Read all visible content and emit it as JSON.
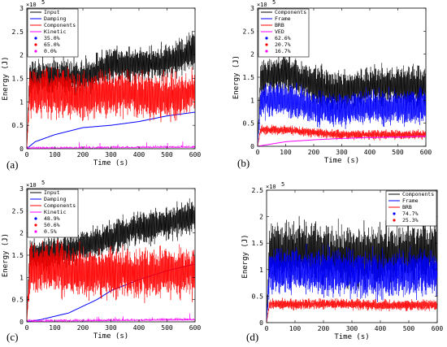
{
  "chart_data": [
    {
      "type": "line",
      "panel_label": "(a)",
      "xlabel": "Time (s)",
      "ylabel": "Energy (J)",
      "y_exponent": "×10",
      "y_exponent_power": "5",
      "xlim": [
        0,
        600
      ],
      "ylim": [
        0,
        3
      ],
      "xticks": [
        "0",
        "100",
        "200",
        "300",
        "400",
        "500",
        "600"
      ],
      "yticks": [
        "0",
        "0.5",
        "1",
        "1.5",
        "2",
        "2.5",
        "3"
      ],
      "series": [
        {
          "name": "Input",
          "color": "#000000",
          "kind": "oscillating",
          "base": [
            [
              0,
              0
            ],
            [
              10,
              1.5
            ],
            [
              100,
              1.55
            ],
            [
              200,
              1.5
            ],
            [
              300,
              1.8
            ],
            [
              400,
              1.8
            ],
            [
              500,
              1.85
            ],
            [
              600,
              2.1
            ]
          ],
          "amp": 0.3
        },
        {
          "name": "Damping",
          "color": "#0000ff",
          "kind": "smooth",
          "points": [
            [
              0,
              0
            ],
            [
              30,
              0.15
            ],
            [
              100,
              0.3
            ],
            [
              200,
              0.45
            ],
            [
              300,
              0.5
            ],
            [
              400,
              0.58
            ],
            [
              500,
              0.7
            ],
            [
              600,
              0.78
            ]
          ]
        },
        {
          "name": "Components",
          "color": "#ff0000",
          "kind": "oscillating",
          "base": [
            [
              0,
              0
            ],
            [
              10,
              1.2
            ],
            [
              100,
              1.2
            ],
            [
              200,
              1.1
            ],
            [
              300,
              1.2
            ],
            [
              400,
              1.15
            ],
            [
              500,
              1.1
            ],
            [
              600,
              1.2
            ]
          ],
          "amp": 0.4
        },
        {
          "name": "Kinetic",
          "color": "#ff00ff",
          "kind": "spiky",
          "base": [
            [
              0,
              0
            ],
            [
              600,
              0.02
            ]
          ],
          "amp": 0.05
        }
      ],
      "legend_series": [
        "Input",
        "Damping",
        "Components",
        "Kinetic"
      ],
      "legend_percent": [
        {
          "label": "35.0%",
          "color": "#0000ff"
        },
        {
          "label": "65.0%",
          "color": "#ff0000"
        },
        {
          "label": "0.0%",
          "color": "#ff00ff"
        }
      ],
      "legend_position": "top-left"
    },
    {
      "type": "line",
      "panel_label": "(b)",
      "xlabel": "Time (s)",
      "ylabel": "Energy (J)",
      "y_exponent": "×10",
      "y_exponent_power": "5",
      "xlim": [
        0,
        600
      ],
      "ylim": [
        0,
        3
      ],
      "xticks": [
        "0",
        "100",
        "200",
        "300",
        "400",
        "500",
        "600"
      ],
      "yticks": [
        "0",
        "0.5",
        "1",
        "1.5",
        "2",
        "2.5",
        "3"
      ],
      "series": [
        {
          "name": "Components",
          "color": "#000000",
          "kind": "oscillating",
          "base": [
            [
              0,
              0
            ],
            [
              10,
              1.5
            ],
            [
              100,
              1.6
            ],
            [
              200,
              1.3
            ],
            [
              300,
              1.2
            ],
            [
              400,
              1.3
            ],
            [
              500,
              1.3
            ],
            [
              600,
              1.3
            ]
          ],
          "amp": 0.35
        },
        {
          "name": "Frame",
          "color": "#0000ff",
          "kind": "oscillating",
          "base": [
            [
              0,
              0
            ],
            [
              10,
              1.0
            ],
            [
              100,
              1.0
            ],
            [
              200,
              0.85
            ],
            [
              300,
              0.8
            ],
            [
              400,
              0.85
            ],
            [
              500,
              0.85
            ],
            [
              600,
              0.85
            ]
          ],
          "amp": 0.3
        },
        {
          "name": "BRB",
          "color": "#ff0000",
          "kind": "oscillating",
          "base": [
            [
              0,
              0
            ],
            [
              10,
              0.35
            ],
            [
              100,
              0.35
            ],
            [
              200,
              0.3
            ],
            [
              300,
              0.25
            ],
            [
              400,
              0.25
            ],
            [
              500,
              0.25
            ],
            [
              600,
              0.25
            ]
          ],
          "amp": 0.08
        },
        {
          "name": "VED",
          "color": "#ff00ff",
          "kind": "smooth",
          "points": [
            [
              0,
              0
            ],
            [
              100,
              0.1
            ],
            [
              200,
              0.14
            ],
            [
              300,
              0.17
            ],
            [
              400,
              0.19
            ],
            [
              500,
              0.2
            ],
            [
              600,
              0.22
            ]
          ]
        }
      ],
      "legend_series": [
        "Components",
        "Frame",
        "BRB",
        "VED"
      ],
      "legend_percent": [
        {
          "label": "62.6%",
          "color": "#0000ff"
        },
        {
          "label": "20.7%",
          "color": "#ff0000"
        },
        {
          "label": "16.7%",
          "color": "#ff00ff"
        }
      ],
      "legend_position": "top-left"
    },
    {
      "type": "line",
      "panel_label": "(c)",
      "xlabel": "Time (s)",
      "ylabel": "Energy (J)",
      "y_exponent": "×10",
      "y_exponent_power": "5",
      "xlim": [
        0,
        600
      ],
      "ylim": [
        0,
        3
      ],
      "xticks": [
        "0",
        "100",
        "200",
        "300",
        "400",
        "500",
        "600"
      ],
      "yticks": [
        "0",
        "0.5",
        "1",
        "1.5",
        "2",
        "2.5",
        "3"
      ],
      "series": [
        {
          "name": "Input",
          "color": "#000000",
          "kind": "oscillating",
          "base": [
            [
              0,
              0
            ],
            [
              10,
              1.5
            ],
            [
              100,
              1.55
            ],
            [
              200,
              1.7
            ],
            [
              300,
              1.9
            ],
            [
              400,
              2.1
            ],
            [
              500,
              2.2
            ],
            [
              600,
              2.4
            ]
          ],
          "amp": 0.3
        },
        {
          "name": "Damping",
          "color": "#0000ff",
          "kind": "smooth",
          "points": [
            [
              0,
              0
            ],
            [
              50,
              0.05
            ],
            [
              150,
              0.2
            ],
            [
              250,
              0.5
            ],
            [
              300,
              0.7
            ],
            [
              400,
              0.95
            ],
            [
              500,
              1.15
            ],
            [
              600,
              1.3
            ]
          ]
        },
        {
          "name": "Components",
          "color": "#ff0000",
          "kind": "oscillating",
          "base": [
            [
              0,
              0
            ],
            [
              10,
              1.2
            ],
            [
              100,
              1.2
            ],
            [
              200,
              1.1
            ],
            [
              300,
              1.1
            ],
            [
              400,
              1.1
            ],
            [
              500,
              1.1
            ],
            [
              600,
              1.15
            ]
          ],
          "amp": 0.45
        },
        {
          "name": "Kinetic",
          "color": "#ff00ff",
          "kind": "spiky",
          "base": [
            [
              0,
              0
            ],
            [
              600,
              0.03
            ]
          ],
          "amp": 0.06
        }
      ],
      "legend_series": [
        "Input",
        "Damping",
        "Components",
        "Kinetic"
      ],
      "legend_percent": [
        {
          "label": "48.9%",
          "color": "#0000ff"
        },
        {
          "label": "50.6%",
          "color": "#ff0000"
        },
        {
          "label": "0.5%",
          "color": "#ff00ff"
        }
      ],
      "legend_position": "top-left"
    },
    {
      "type": "line",
      "panel_label": "(d)",
      "xlabel": "Time (s)",
      "ylabel": "Energy (J)",
      "y_exponent": "×10",
      "y_exponent_power": "5",
      "xlim": [
        0,
        600
      ],
      "ylim": [
        0,
        2.5
      ],
      "xticks": [
        "0",
        "100",
        "200",
        "300",
        "400",
        "500",
        "600"
      ],
      "yticks": [
        "0",
        "0.5",
        "1",
        "1.5",
        "2",
        "2.5"
      ],
      "series": [
        {
          "name": "Components",
          "color": "#000000",
          "kind": "oscillating",
          "base": [
            [
              0,
              0
            ],
            [
              10,
              1.3
            ],
            [
              100,
              1.35
            ],
            [
              200,
              1.3
            ],
            [
              300,
              1.25
            ],
            [
              400,
              1.25
            ],
            [
              500,
              1.3
            ],
            [
              600,
              1.3
            ]
          ],
          "amp": 0.45
        },
        {
          "name": "Frame",
          "color": "#0000ff",
          "kind": "oscillating",
          "base": [
            [
              0,
              0
            ],
            [
              10,
              1.0
            ],
            [
              100,
              1.0
            ],
            [
              200,
              0.95
            ],
            [
              300,
              0.95
            ],
            [
              400,
              0.9
            ],
            [
              500,
              0.95
            ],
            [
              600,
              0.95
            ]
          ],
          "amp": 0.35
        },
        {
          "name": "BRB",
          "color": "#ff0000",
          "kind": "oscillating",
          "base": [
            [
              0,
              0
            ],
            [
              10,
              0.35
            ],
            [
              100,
              0.35
            ],
            [
              200,
              0.35
            ],
            [
              300,
              0.35
            ],
            [
              400,
              0.32
            ],
            [
              500,
              0.33
            ],
            [
              600,
              0.33
            ]
          ],
          "amp": 0.08
        }
      ],
      "legend_series": [
        "Components",
        "Frame",
        "BRB"
      ],
      "legend_percent": [
        {
          "label": "74.7%",
          "color": "#0000ff"
        },
        {
          "label": "25.3%",
          "color": "#ff0000"
        }
      ],
      "legend_position": "top-right"
    }
  ]
}
